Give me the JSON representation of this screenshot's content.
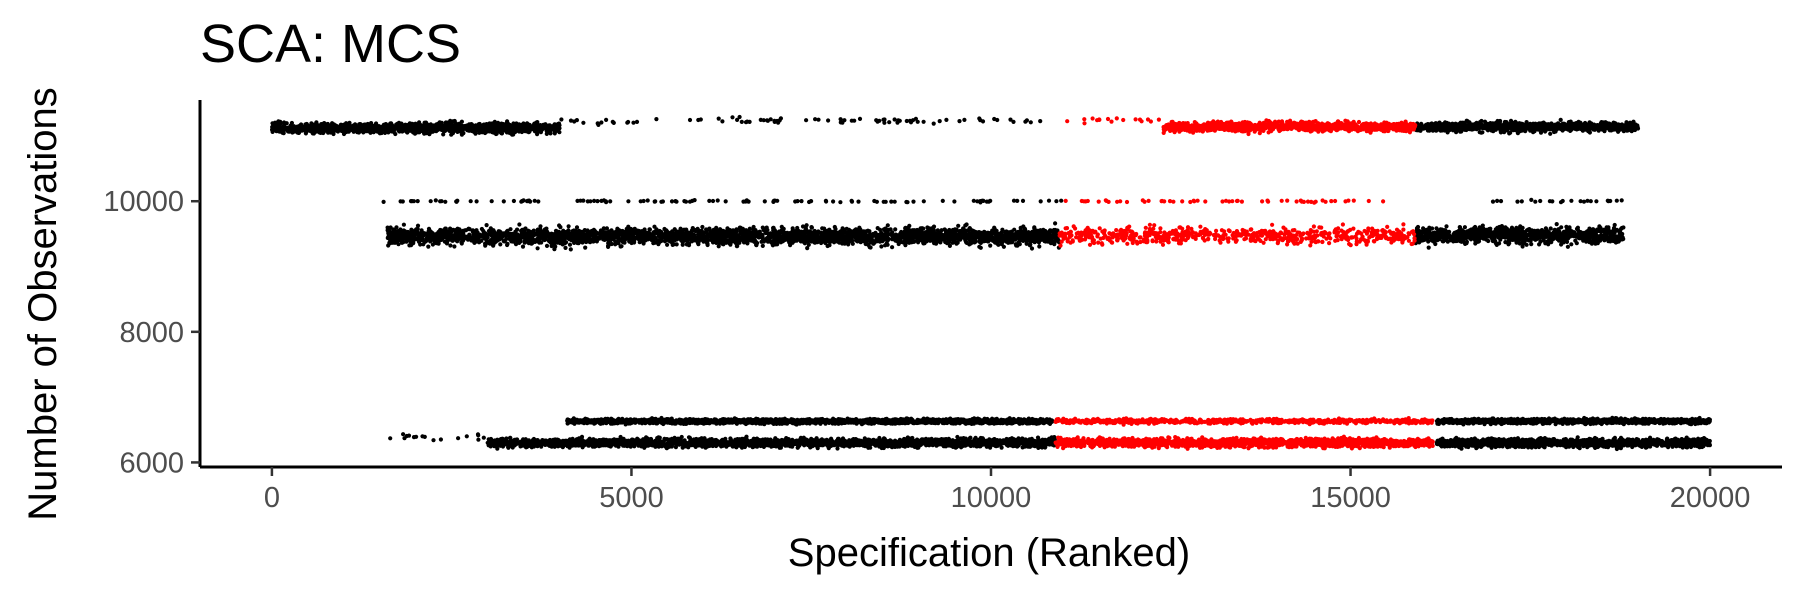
{
  "chart_data": {
    "type": "scatter",
    "title": "SCA: MCS",
    "xlabel": "Specification (Ranked)",
    "ylabel": "Number of Observations",
    "xlim": [
      -1000,
      21000
    ],
    "ylim": [
      5930,
      11550
    ],
    "x_ticks": [
      0,
      5000,
      10000,
      15000,
      20000
    ],
    "x_tick_labels": [
      "0",
      "5000",
      "10000",
      "15000",
      "20000"
    ],
    "y_ticks": [
      6000,
      8000,
      10000
    ],
    "y_tick_labels": [
      "6000",
      "8000",
      "10000"
    ],
    "grid": false,
    "legend": "none",
    "colors": {
      "default": "#000000",
      "highlight": "#ff0000"
    },
    "highlight_rule": "points highlighted in red fall in specification ranks approx. 10900-16200 depending on band",
    "series": [
      {
        "color": "#000000",
        "bands": [
          {
            "x": [
              0,
              4000
            ],
            "y_center": 11120,
            "y_spread": 130,
            "density": "high"
          },
          {
            "x": [
              4000,
              11000
            ],
            "y_center": 11230,
            "y_spread": 80,
            "density": "sparse"
          },
          {
            "x": [
              15900,
              19000
            ],
            "y_center": 11140,
            "y_spread": 120,
            "density": "high"
          },
          {
            "x": [
              1600,
              10950
            ],
            "y_center": 9460,
            "y_spread": 220,
            "density": "high"
          },
          {
            "x": [
              1500,
              11000
            ],
            "y_center": 10000,
            "y_spread": 25,
            "density": "sparse"
          },
          {
            "x": [
              15900,
              18800
            ],
            "y_center": 9480,
            "y_spread": 220,
            "density": "high"
          },
          {
            "x": [
              16900,
              18800
            ],
            "y_center": 10000,
            "y_spread": 25,
            "density": "sparse"
          },
          {
            "x": [
              4100,
              10850
            ],
            "y_center": 6630,
            "y_spread": 60,
            "density": "high"
          },
          {
            "x": [
              3000,
              10900
            ],
            "y_center": 6300,
            "y_spread": 110,
            "density": "high"
          },
          {
            "x": [
              1600,
              3000
            ],
            "y_center": 6380,
            "y_spread": 80,
            "density": "sparse"
          },
          {
            "x": [
              16200,
              20000
            ],
            "y_center": 6630,
            "y_spread": 60,
            "density": "high"
          },
          {
            "x": [
              16200,
              20000
            ],
            "y_center": 6300,
            "y_spread": 110,
            "density": "high"
          }
        ]
      },
      {
        "color": "#ff0000",
        "bands": [
          {
            "x": [
              11000,
              12400
            ],
            "y_center": 11240,
            "y_spread": 70,
            "density": "sparse"
          },
          {
            "x": [
              12400,
              15900
            ],
            "y_center": 11140,
            "y_spread": 120,
            "density": "high"
          },
          {
            "x": [
              10950,
              15900
            ],
            "y_center": 9470,
            "y_spread": 220,
            "density": "medium"
          },
          {
            "x": [
              10950,
              15500
            ],
            "y_center": 10000,
            "y_spread": 25,
            "density": "sparse"
          },
          {
            "x": [
              10900,
              16150
            ],
            "y_center": 6630,
            "y_spread": 60,
            "density": "medium"
          },
          {
            "x": [
              10900,
              16150
            ],
            "y_center": 6300,
            "y_spread": 110,
            "density": "high"
          }
        ]
      }
    ]
  }
}
